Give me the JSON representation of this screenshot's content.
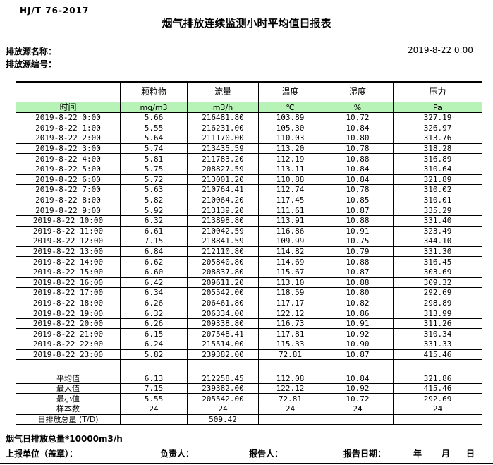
{
  "header": {
    "standard": "HJ/T  76-2017",
    "title": "烟气排放连续监测小时平均值日报表",
    "datetime": "2019-8-22 0:00",
    "source_name_label": "排放源名称：",
    "source_id_label": "排放源编号："
  },
  "table": {
    "time_header": "时间",
    "columns": [
      {
        "name": "颗粒物",
        "unit": "mg/m3"
      },
      {
        "name": "流量",
        "unit": "m3/h"
      },
      {
        "name": "温度",
        "unit": "℃"
      },
      {
        "name": "湿度",
        "unit": "%"
      },
      {
        "name": "压力",
        "unit": "Pa"
      }
    ],
    "rows": [
      {
        "time": "2019-8-22 0:00",
        "values": [
          "5.66",
          "216481.80",
          "103.89",
          "10.72",
          "327.19"
        ]
      },
      {
        "time": "2019-8-22 1:00",
        "values": [
          "5.55",
          "216231.00",
          "105.30",
          "10.84",
          "326.97"
        ]
      },
      {
        "time": "2019-8-22 2:00",
        "values": [
          "5.64",
          "211170.00",
          "110.03",
          "10.80",
          "313.76"
        ]
      },
      {
        "time": "2019-8-22 3:00",
        "values": [
          "5.74",
          "213435.59",
          "113.20",
          "10.78",
          "318.28"
        ]
      },
      {
        "time": "2019-8-22 4:00",
        "values": [
          "5.81",
          "211783.20",
          "112.19",
          "10.88",
          "316.89"
        ]
      },
      {
        "time": "2019-8-22 5:00",
        "values": [
          "5.75",
          "208827.59",
          "113.11",
          "10.84",
          "310.64"
        ]
      },
      {
        "time": "2019-8-22 6:00",
        "values": [
          "5.72",
          "213001.20",
          "110.88",
          "10.84",
          "321.89"
        ]
      },
      {
        "time": "2019-8-22 7:00",
        "values": [
          "5.63",
          "210764.41",
          "112.74",
          "10.78",
          "310.02"
        ]
      },
      {
        "time": "2019-8-22 8:00",
        "values": [
          "5.82",
          "210064.20",
          "117.45",
          "10.85",
          "310.01"
        ]
      },
      {
        "time": "2019-8-22 9:00",
        "values": [
          "5.92",
          "213139.20",
          "111.61",
          "10.87",
          "335.29"
        ]
      },
      {
        "time": "2019-8-22 10:00",
        "values": [
          "6.32",
          "213898.80",
          "113.91",
          "10.88",
          "331.40"
        ]
      },
      {
        "time": "2019-8-22 11:00",
        "values": [
          "6.61",
          "210042.59",
          "116.86",
          "10.91",
          "323.49"
        ]
      },
      {
        "time": "2019-8-22 12:00",
        "values": [
          "7.15",
          "218841.59",
          "109.99",
          "10.75",
          "344.10"
        ]
      },
      {
        "time": "2019-8-22 13:00",
        "values": [
          "6.84",
          "212110.80",
          "114.82",
          "10.79",
          "331.30"
        ]
      },
      {
        "time": "2019-8-22 14:00",
        "values": [
          "6.62",
          "205840.80",
          "114.69",
          "10.88",
          "316.45"
        ]
      },
      {
        "time": "2019-8-22 15:00",
        "values": [
          "6.60",
          "208837.80",
          "115.67",
          "10.87",
          "303.69"
        ]
      },
      {
        "time": "2019-8-22 16:00",
        "values": [
          "6.42",
          "209611.20",
          "113.10",
          "10.88",
          "309.32"
        ]
      },
      {
        "time": "2019-8-22 17:00",
        "values": [
          "6.34",
          "205542.00",
          "118.59",
          "10.80",
          "292.69"
        ]
      },
      {
        "time": "2019-8-22 18:00",
        "values": [
          "6.26",
          "206461.80",
          "117.17",
          "10.82",
          "298.89"
        ]
      },
      {
        "time": "2019-8-22 19:00",
        "values": [
          "6.32",
          "206334.00",
          "122.12",
          "10.86",
          "313.99"
        ]
      },
      {
        "time": "2019-8-22 20:00",
        "values": [
          "6.26",
          "209338.80",
          "116.73",
          "10.91",
          "311.26"
        ]
      },
      {
        "time": "2019-8-22 21:00",
        "values": [
          "6.15",
          "207548.41",
          "117.81",
          "10.92",
          "310.34"
        ]
      },
      {
        "time": "2019-8-22 22:00",
        "values": [
          "6.24",
          "215514.00",
          "115.33",
          "10.90",
          "331.33"
        ]
      },
      {
        "time": "2019-8-22 23:00",
        "values": [
          "5.82",
          "239382.00",
          "72.81",
          "10.87",
          "415.46"
        ]
      }
    ],
    "summary": [
      {
        "label": "平均值",
        "values": [
          "6.13",
          "212258.45",
          "112.08",
          "10.84",
          "321.86"
        ]
      },
      {
        "label": "最大值",
        "values": [
          "7.15",
          "239382.00",
          "122.12",
          "10.92",
          "415.46"
        ]
      },
      {
        "label": "最小值",
        "values": [
          "5.55",
          "205542.00",
          "72.81",
          "10.72",
          "292.69"
        ]
      },
      {
        "label": "样本数",
        "values": [
          "24",
          "24",
          "24",
          "24",
          "24"
        ]
      },
      {
        "label": "日排放总量 (T/D)",
        "values": [
          "",
          "509.42",
          "",
          "",
          ""
        ]
      }
    ]
  },
  "footer": {
    "note": "烟气日排放总量*10000m3/h",
    "unit_label": "上报单位（盖章）：",
    "responsible_label": "负责人：",
    "reporter_label": "报告人：",
    "report_date_label": "报告日期：",
    "year_label": "年",
    "month_label": "月",
    "day_label": "日"
  },
  "colors": {
    "header_green": "#b7f3b7",
    "border": "#000000",
    "background": "#ffffff"
  }
}
